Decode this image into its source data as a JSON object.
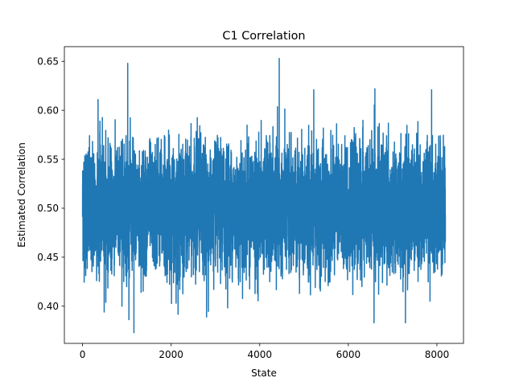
{
  "chart_data": {
    "type": "line",
    "title": "C1 Correlation",
    "xlabel": "State",
    "ylabel": "Estimated Correlation",
    "xlim": [
      -410,
      8600
    ],
    "ylim": [
      0.362,
      0.665
    ],
    "x_ticks": [
      0,
      2000,
      4000,
      6000,
      8000
    ],
    "x_tick_labels": [
      "0",
      "2000",
      "4000",
      "6000",
      "8000"
    ],
    "y_ticks": [
      0.4,
      0.45,
      0.5,
      0.55,
      0.6,
      0.65
    ],
    "y_tick_labels": [
      "0.40",
      "0.45",
      "0.50",
      "0.55",
      "0.60",
      "0.65"
    ],
    "grid": false,
    "legend": "none",
    "series": [
      {
        "color": "#1f77b4",
        "n_points": 8192,
        "mean": 0.5,
        "typical_range": [
          0.43,
          0.58
        ],
        "extremes": [
          {
            "x": 1020,
            "y": 0.648
          },
          {
            "x": 1160,
            "y": 0.373
          },
          {
            "x": 4440,
            "y": 0.653
          },
          {
            "x": 6580,
            "y": 0.383
          },
          {
            "x": 7290,
            "y": 0.383
          },
          {
            "x": 5220,
            "y": 0.621
          },
          {
            "x": 7880,
            "y": 0.621
          },
          {
            "x": 2800,
            "y": 0.389
          },
          {
            "x": 350,
            "y": 0.611
          },
          {
            "x": 6600,
            "y": 0.622
          }
        ]
      }
    ]
  }
}
